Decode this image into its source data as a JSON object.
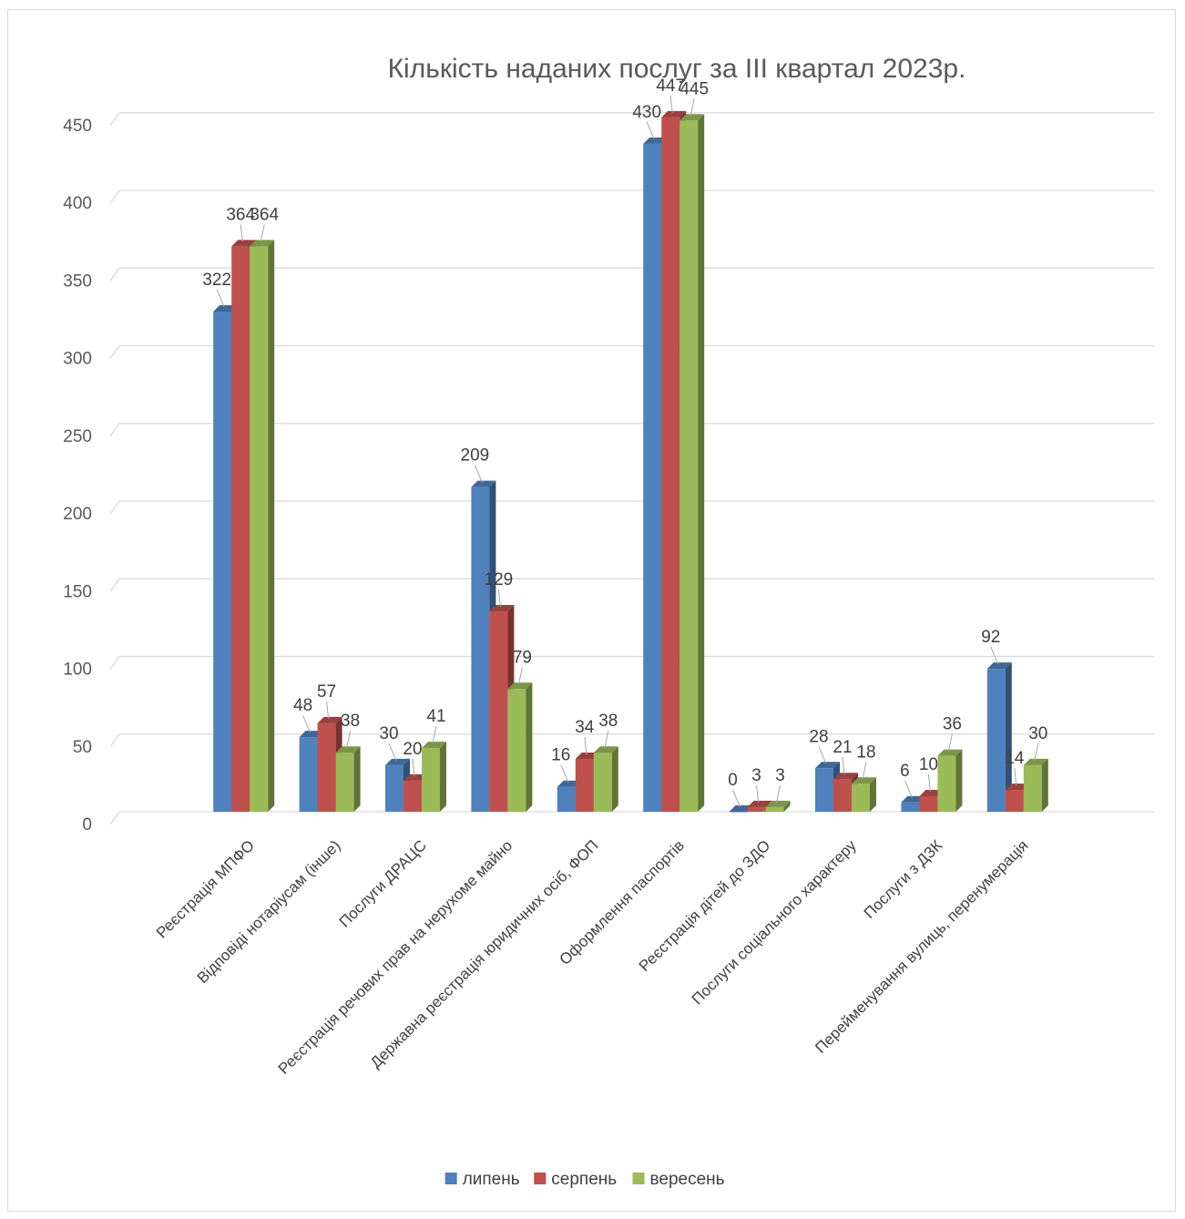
{
  "chart_data": {
    "type": "bar",
    "title": "Кількість наданих послуг за ІІІ квартал 2023р.",
    "xlabel": "",
    "ylabel": "",
    "ylim": [
      0,
      450
    ],
    "yticks": [
      0,
      50,
      100,
      150,
      200,
      250,
      300,
      350,
      400,
      450
    ],
    "grid": true,
    "legend_position": "bottom",
    "categories": [
      "Реєстрація МПФО",
      "Відповіді нотаріусам (інше)",
      "Послуги ДРАЦС",
      "Реєстрація речових прав на нерухоме майно",
      "Державна реєстрація юридичних осіб, ФОП",
      "Оформлення паспортів",
      "Реєстрація дітей до ЗДО",
      "Послуги соціального характеру",
      "Послуги з ДЗК",
      "Перейменування вулиць, перенумерація"
    ],
    "series": [
      {
        "name": "липень",
        "color": "#4F81BD",
        "values": [
          322,
          48,
          30,
          209,
          16,
          430,
          0,
          28,
          6,
          92
        ]
      },
      {
        "name": "серпень",
        "color": "#C0504D",
        "values": [
          364,
          57,
          20,
          129,
          34,
          447,
          3,
          21,
          10,
          14
        ]
      },
      {
        "name": "вересень",
        "color": "#9BBB59",
        "values": [
          364,
          38,
          41,
          79,
          38,
          445,
          3,
          18,
          36,
          30
        ]
      }
    ]
  }
}
